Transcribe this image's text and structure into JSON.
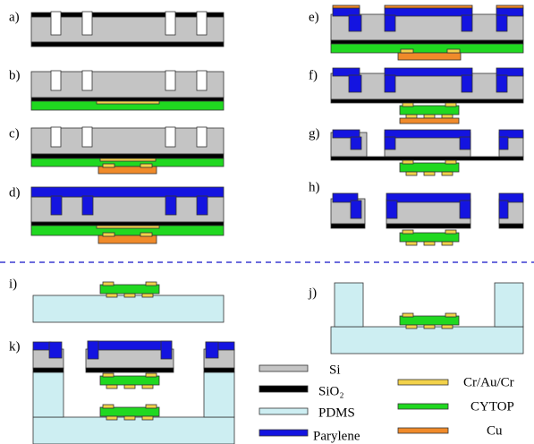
{
  "steps": [
    "a)",
    "b)",
    "c)",
    "d)",
    "e)",
    "f)",
    "g)",
    "h)",
    "i)",
    "j)",
    "k)"
  ],
  "legend": {
    "left": [
      "Si",
      "SiO₂",
      "PDMS",
      "Parylene"
    ],
    "right": [
      "Cr/Au/Cr",
      "CYTOP",
      "Cu"
    ]
  }
}
